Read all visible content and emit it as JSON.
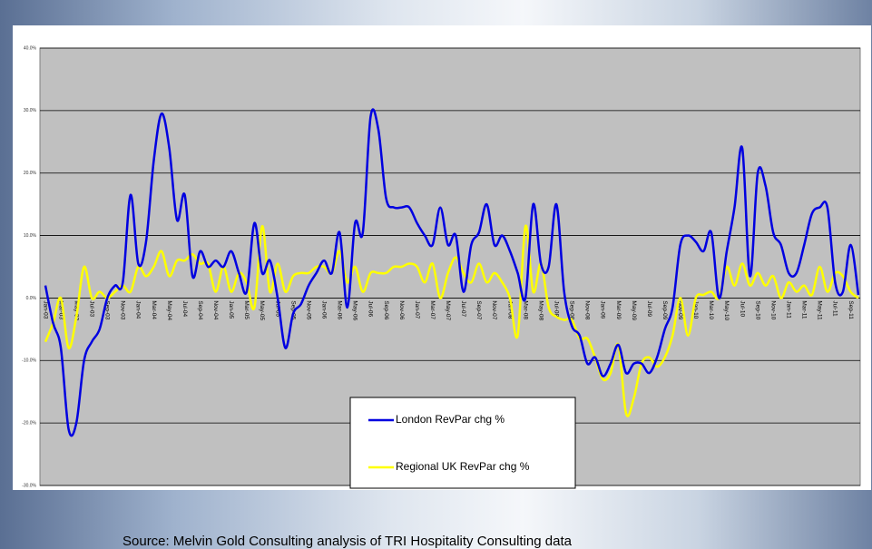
{
  "chart_data": {
    "type": "line",
    "source": "Source: Melvin Gold Consulting analysis of TRI Hospitality Consulting data",
    "categories": [
      "Jan-03",
      null,
      "Mar-03",
      null,
      "May-03",
      null,
      "Jul-03",
      null,
      "Sep-03",
      null,
      "Nov-03",
      null,
      "Jan-04",
      null,
      "Mar-04",
      null,
      "May-04",
      null,
      "Jul-04",
      null,
      "Sep-04",
      null,
      "Nov-04",
      null,
      "Jan-05",
      null,
      "Mar-05",
      null,
      "May-05",
      null,
      "Jul-05",
      null,
      "Sep-05",
      null,
      "Nov-05",
      null,
      "Jan-06",
      null,
      "Mar-06",
      null,
      "May-06",
      null,
      "Jul-06",
      null,
      "Sep-06",
      null,
      "Nov-06",
      null,
      "Jan-07",
      null,
      "Mar-07",
      null,
      "May-07",
      null,
      "Jul-07",
      null,
      "Sep-07",
      null,
      "Nov-07",
      null,
      "Jan-08",
      null,
      "Mar-08",
      null,
      "May-08",
      null,
      "Jul-08",
      null,
      "Sep-08",
      null,
      "Nov-08",
      null,
      "Jan-09",
      null,
      "Mar-09",
      null,
      "May-09",
      null,
      "Jul-09",
      null,
      "Sep-09",
      null,
      "Nov-09",
      null,
      "Jan-10",
      null,
      "Mar-10",
      null,
      "May-10",
      null,
      "Jul-10",
      null,
      "Sep-10",
      null,
      "Nov-10",
      null,
      "Jan-11",
      null,
      "Mar-11",
      null,
      "May-11",
      null,
      "Jul-11",
      null,
      "Sep-11",
      null
    ],
    "series": [
      {
        "name": "London RevPar chg %",
        "color": "#0000e0",
        "values": [
          2,
          -4,
          -8,
          -21,
          -20,
          -10,
          -7,
          -5,
          0,
          2,
          2.5,
          16.5,
          5.5,
          9,
          22,
          29.5,
          24,
          12.5,
          16.5,
          3.5,
          7.5,
          5,
          6,
          5,
          7.5,
          4,
          1,
          12,
          4,
          6,
          0,
          -8,
          -2.5,
          -1,
          2,
          4,
          6,
          4,
          10.5,
          -1.5,
          12,
          10.5,
          29,
          27,
          16,
          14.5,
          14.5,
          14.5,
          12,
          10,
          8.5,
          14.5,
          8.5,
          10,
          1,
          8.5,
          10.5,
          15,
          8.5,
          10,
          7.5,
          4,
          0,
          15,
          5.5,
          5,
          15,
          1,
          -4.5,
          -6,
          -10.5,
          -9.5,
          -12.5,
          -10.5,
          -7.5,
          -12,
          -10.5,
          -10.5,
          -12,
          -9.5,
          -5,
          -1.5,
          8.5,
          10,
          9,
          7.5,
          10.5,
          0,
          7.5,
          14.5,
          24,
          3.5,
          20,
          18,
          10.5,
          8.5,
          4,
          4,
          8.5,
          13.5,
          14.5,
          14.5,
          2.5,
          1,
          8.5,
          0.5
        ]
      },
      {
        "name": "Regional UK RevPar chg %",
        "color": "#ffff00",
        "values": [
          -7,
          -4,
          0,
          -8,
          -3,
          5,
          0,
          1,
          0,
          1,
          2,
          1,
          5,
          3.5,
          5,
          7.5,
          3.5,
          6,
          6,
          7,
          5.5,
          5.5,
          1,
          5,
          1,
          4,
          2.5,
          -1.5,
          11.5,
          1,
          5.5,
          1,
          3.5,
          4,
          4,
          5,
          5,
          4,
          7.5,
          2.5,
          5,
          1,
          4,
          4,
          4,
          5,
          5,
          5.5,
          5,
          2.5,
          5.5,
          0,
          4,
          6.5,
          4,
          2.5,
          5.5,
          2.5,
          4,
          2.5,
          0,
          -6,
          11.5,
          1,
          5.5,
          -1.5,
          -3,
          -3.5,
          -3.5,
          -6.5,
          -6.5,
          -9.5,
          -13,
          -12,
          -7.5,
          -18.5,
          -16,
          -10.5,
          -9.5,
          -11,
          -9.5,
          -6,
          0,
          -6,
          0,
          0.5,
          1,
          0,
          5,
          2,
          5.5,
          2,
          4,
          2,
          3.5,
          0,
          2.5,
          1,
          2,
          0.5,
          5,
          1,
          4,
          3.5,
          1,
          0
        ]
      }
    ],
    "ylim": [
      -30,
      40
    ],
    "yticks": [
      {
        "value": 40,
        "label": "40.0%"
      },
      {
        "value": 30,
        "label": "30.0%"
      },
      {
        "value": 20,
        "label": "20.0%"
      },
      {
        "value": 10,
        "label": "10.0%"
      },
      {
        "value": 0,
        "label": "0.0%"
      },
      {
        "value": -10,
        "label": "-10.0%"
      },
      {
        "value": -20,
        "label": "-20.0%"
      },
      {
        "value": -30,
        "label": "-30.0%"
      }
    ],
    "grid": true
  }
}
